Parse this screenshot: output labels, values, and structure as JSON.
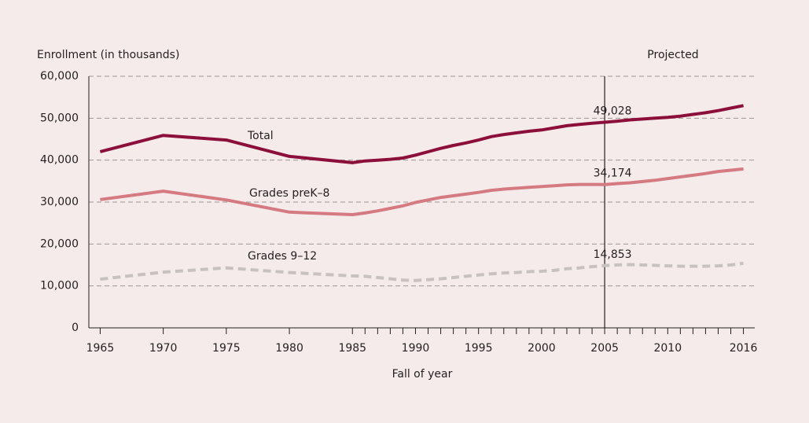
{
  "chart_data": {
    "type": "line",
    "y_axis_label": "Enrollment (in thousands)",
    "x_axis_label": "Fall of year",
    "projection_start": 2005,
    "projection_label": "Projected",
    "x": [
      1965,
      1970,
      1975,
      1980,
      1985,
      1986,
      1987,
      1988,
      1989,
      1990,
      1991,
      1992,
      1993,
      1994,
      1995,
      1996,
      1997,
      1998,
      1999,
      2000,
      2001,
      2002,
      2003,
      2004,
      2005,
      2006,
      2007,
      2008,
      2009,
      2010,
      2011,
      2012,
      2013,
      2014,
      2015,
      2016
    ],
    "series": [
      {
        "name": "Total",
        "color": "#8c0f3b",
        "dashed": false,
        "values": [
          42000,
          45900,
          44800,
          40900,
          39400,
          39800,
          40000,
          40200,
          40500,
          41200,
          42000,
          42800,
          43500,
          44100,
          44800,
          45600,
          46100,
          46500,
          46900,
          47200,
          47700,
          48200,
          48500,
          48800,
          49028,
          49300,
          49600,
          49800,
          50000,
          50200,
          50500,
          50900,
          51300,
          51800,
          52400,
          53000
        ],
        "value_labels": [
          null,
          null,
          null,
          null,
          null,
          null,
          null,
          null,
          null,
          null,
          null,
          null,
          null,
          null,
          null,
          null,
          null,
          null,
          null,
          null,
          null,
          null,
          null,
          null,
          "49,028",
          null,
          null,
          null,
          null,
          null,
          null,
          null,
          null,
          null,
          null,
          null
        ]
      },
      {
        "name": "Grades preK–8",
        "color": "#d47a80",
        "dashed": false,
        "values": [
          30600,
          32600,
          30500,
          27600,
          27000,
          27400,
          27900,
          28500,
          29100,
          29900,
          30500,
          31100,
          31500,
          31900,
          32300,
          32800,
          33100,
          33300,
          33500,
          33700,
          33900,
          34100,
          34200,
          34200,
          34174,
          34400,
          34600,
          34900,
          35200,
          35600,
          36000,
          36400,
          36800,
          37300,
          37600,
          37900
        ],
        "value_labels": [
          null,
          null,
          null,
          null,
          null,
          null,
          null,
          null,
          null,
          null,
          null,
          null,
          null,
          null,
          null,
          null,
          null,
          null,
          null,
          null,
          null,
          null,
          null,
          null,
          "34,174",
          null,
          null,
          null,
          null,
          null,
          null,
          null,
          null,
          null,
          null,
          null
        ]
      },
      {
        "name": "Grades 9–12",
        "color": "#c8c1c1",
        "dashed": true,
        "values": [
          11600,
          13300,
          14300,
          13200,
          12400,
          12300,
          12000,
          11700,
          11400,
          11300,
          11500,
          11700,
          12000,
          12300,
          12600,
          12900,
          13100,
          13200,
          13400,
          13500,
          13700,
          14100,
          14300,
          14600,
          14853,
          15000,
          15100,
          15000,
          14900,
          14800,
          14700,
          14700,
          14700,
          14800,
          15000,
          15400
        ],
        "value_labels": [
          null,
          null,
          null,
          null,
          null,
          null,
          null,
          null,
          null,
          null,
          null,
          null,
          null,
          null,
          null,
          null,
          null,
          null,
          null,
          null,
          null,
          null,
          null,
          null,
          "14,853",
          null,
          null,
          null,
          null,
          null,
          null,
          null,
          null,
          null,
          null,
          null
        ]
      }
    ],
    "xlim": [
      1964.1,
      2016.9
    ],
    "xticks": [
      1965,
      1970,
      1975,
      1980,
      1985,
      1990,
      1995,
      2000,
      2005,
      2010,
      2016
    ],
    "xminorticks": [
      1965,
      1970,
      1975,
      1980,
      1985,
      1986,
      1987,
      1988,
      1989,
      1990,
      1991,
      1992,
      1993,
      1994,
      1995,
      1996,
      1997,
      1998,
      1999,
      2000,
      2001,
      2002,
      2003,
      2004,
      2005,
      2006,
      2007,
      2008,
      2009,
      2010,
      2011,
      2012,
      2013,
      2014,
      2015,
      2016
    ],
    "ylim": [
      0,
      60000
    ],
    "yticks": [
      {
        "value": 0,
        "label": "0"
      },
      {
        "value": 10000,
        "label": "10,000"
      },
      {
        "value": 20000,
        "label": "20,000"
      },
      {
        "value": 30000,
        "label": "30,000"
      },
      {
        "value": 40000,
        "label": "40,000"
      },
      {
        "value": 50000,
        "label": "50,000"
      },
      {
        "value": 60000,
        "label": "60,000"
      }
    ],
    "grid": true
  }
}
